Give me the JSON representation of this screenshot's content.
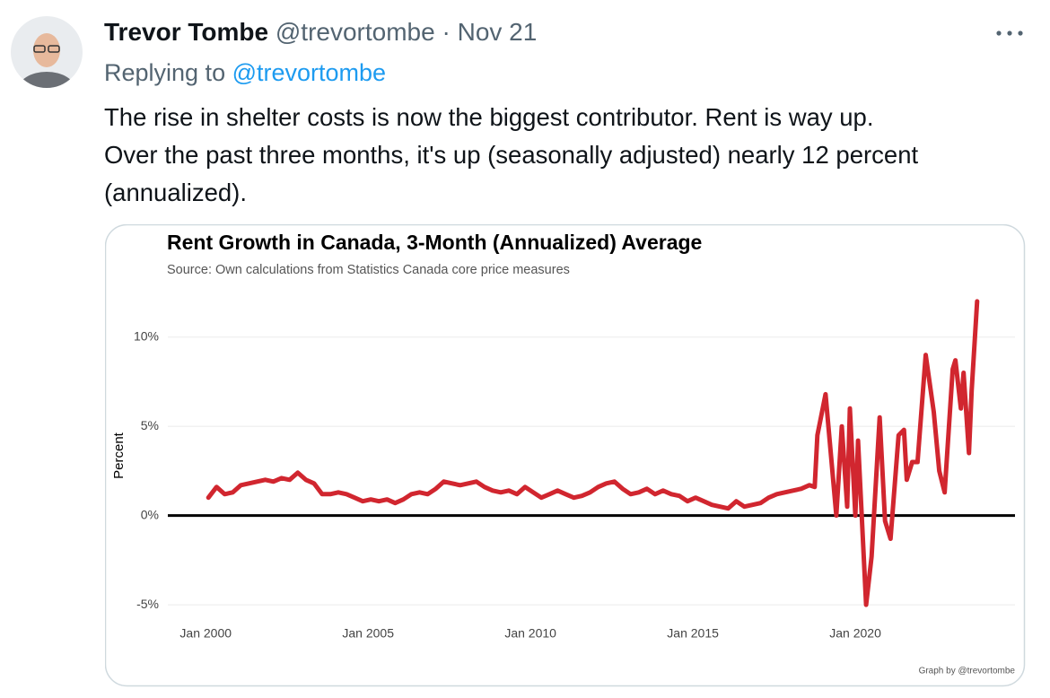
{
  "tweet": {
    "name": "Trevor Tombe",
    "handle": "@trevortombe",
    "separator": "·",
    "date": "Nov 21",
    "reply_prefix": "Replying to",
    "reply_to": "@trevortombe",
    "text_lines": [
      "The rise in shelter costs is now the biggest contributor. Rent is way up.",
      "Over the past three months, it's up (seasonally adjusted) nearly 12 percent",
      "(annualized)."
    ]
  },
  "chart_data": {
    "type": "line",
    "title": "Rent Growth in Canada, 3-Month (Annualized) Average",
    "subtitle": "Source: Own calculations from Statistics Canada core price measures",
    "ylabel": "Percent",
    "footer": "Graph by @trevortombe",
    "color": "#d1262f",
    "reference_line": 0,
    "grid": true,
    "xlim": [
      "1998-11",
      "2024-12"
    ],
    "ylim": [
      -5.6,
      12.5
    ],
    "xticks": [
      {
        "value": "2000-01",
        "label": "Jan 2000"
      },
      {
        "value": "2005-01",
        "label": "Jan 2005"
      },
      {
        "value": "2010-01",
        "label": "Jan 2010"
      },
      {
        "value": "2015-01",
        "label": "Jan 2015"
      },
      {
        "value": "2020-01",
        "label": "Jan 2020"
      }
    ],
    "yticks": [
      {
        "value": -5,
        "label": "-5%"
      },
      {
        "value": 0,
        "label": "0%"
      },
      {
        "value": 5,
        "label": "5%"
      },
      {
        "value": 10,
        "label": "10%"
      }
    ],
    "x": [
      "2000-02",
      "2000-05",
      "2000-08",
      "2000-11",
      "2001-02",
      "2001-05",
      "2001-08",
      "2001-11",
      "2002-02",
      "2002-05",
      "2002-08",
      "2002-11",
      "2003-02",
      "2003-05",
      "2003-08",
      "2003-11",
      "2004-02",
      "2004-05",
      "2004-08",
      "2004-11",
      "2005-02",
      "2005-05",
      "2005-08",
      "2005-11",
      "2006-02",
      "2006-05",
      "2006-08",
      "2006-11",
      "2007-02",
      "2007-05",
      "2007-08",
      "2007-11",
      "2008-02",
      "2008-05",
      "2008-08",
      "2008-11",
      "2009-02",
      "2009-05",
      "2009-08",
      "2009-11",
      "2010-02",
      "2010-05",
      "2010-08",
      "2010-11",
      "2011-02",
      "2011-05",
      "2011-08",
      "2011-11",
      "2012-02",
      "2012-05",
      "2012-08",
      "2012-11",
      "2013-02",
      "2013-05",
      "2013-08",
      "2013-11",
      "2014-02",
      "2014-05",
      "2014-08",
      "2014-11",
      "2015-02",
      "2015-05",
      "2015-08",
      "2015-11",
      "2016-02",
      "2016-05",
      "2016-08",
      "2016-11",
      "2017-02",
      "2017-05",
      "2017-08",
      "2017-11",
      "2018-02",
      "2018-05",
      "2018-08",
      "2018-10",
      "2018-11",
      "2019-02",
      "2019-06",
      "2019-08",
      "2019-10",
      "2019-11",
      "2020-01",
      "2020-02",
      "2020-05",
      "2020-07",
      "2020-10",
      "2020-12",
      "2021-02",
      "2021-05",
      "2021-07",
      "2021-08",
      "2021-10",
      "2021-12",
      "2022-03",
      "2022-06",
      "2022-08",
      "2022-10",
      "2023-01",
      "2023-02",
      "2023-04",
      "2023-05",
      "2023-07",
      "2023-08",
      "2023-10"
    ],
    "values": [
      1.0,
      1.6,
      1.2,
      1.3,
      1.7,
      1.8,
      1.9,
      2.0,
      1.9,
      2.1,
      2.0,
      2.4,
      2.0,
      1.8,
      1.2,
      1.2,
      1.3,
      1.2,
      1.0,
      0.8,
      0.9,
      0.8,
      0.9,
      0.7,
      0.9,
      1.2,
      1.3,
      1.2,
      1.5,
      1.9,
      1.8,
      1.7,
      1.8,
      1.9,
      1.6,
      1.4,
      1.3,
      1.4,
      1.2,
      1.6,
      1.3,
      1.0,
      1.2,
      1.4,
      1.2,
      1.0,
      1.1,
      1.3,
      1.6,
      1.8,
      1.9,
      1.5,
      1.2,
      1.3,
      1.5,
      1.2,
      1.4,
      1.2,
      1.1,
      0.8,
      1.0,
      0.8,
      0.6,
      0.5,
      0.4,
      0.8,
      0.5,
      0.6,
      0.7,
      1.0,
      1.2,
      1.3,
      1.4,
      1.5,
      1.7,
      1.6,
      4.5,
      6.8,
      0.0,
      5.0,
      0.5,
      6.0,
      0.0,
      4.2,
      -5.0,
      -2.3,
      5.5,
      -0.3,
      -1.3,
      4.5,
      4.8,
      2.0,
      3.0,
      3.0,
      9.0,
      5.8,
      2.5,
      1.3,
      8.2,
      8.7,
      6.0,
      8.0,
      3.5,
      7.0,
      12.0
    ]
  }
}
